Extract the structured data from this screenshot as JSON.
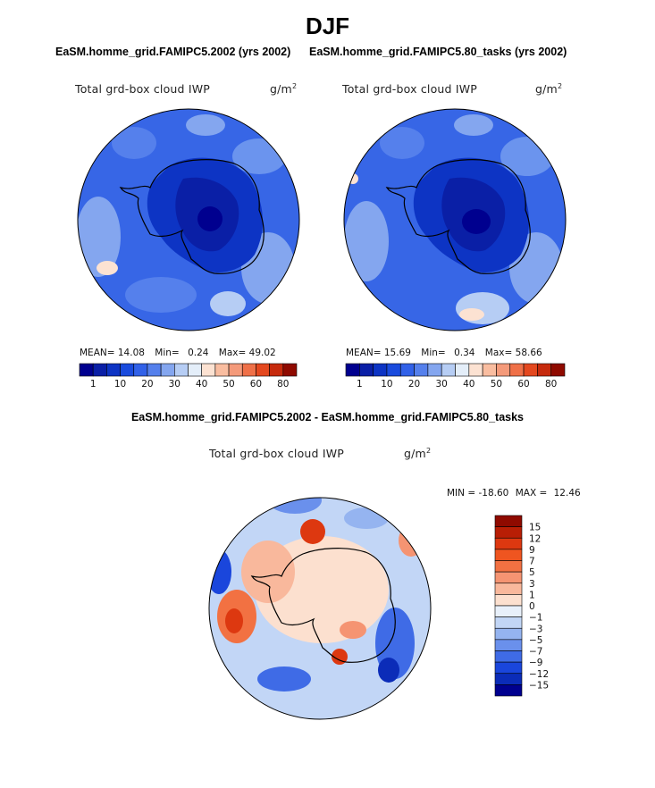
{
  "page_title": "DJF",
  "chart_data": [
    {
      "type": "heatmap",
      "projection": "south-polar-stereographic",
      "title": "EaSM.homme_grid.FAMIPC5.2002 (yrs 2002)",
      "variable_label": "Total grd-box cloud IWP",
      "units_base": "g/m",
      "units_exp": "2",
      "stats": {
        "mean_label": "MEAN=",
        "mean": "14.08",
        "min_label": "Min=",
        "min": "0.24",
        "max_label": "Max=",
        "max": "49.02"
      },
      "colorbar": {
        "levels": [
          1,
          5,
          10,
          15,
          20,
          25,
          30,
          35,
          40,
          45,
          50,
          55,
          60,
          70,
          80
        ],
        "tick_labels": [
          "1",
          "10",
          "20",
          "30",
          "40",
          "50",
          "60",
          "80"
        ],
        "colors": [
          "#00008f",
          "#0a1fa6",
          "#0d34c4",
          "#1a4bdd",
          "#3161e8",
          "#5580ec",
          "#84a6ef",
          "#b6cdf4",
          "#e4eef9",
          "#fce2d2",
          "#f9bda0",
          "#f49a7a",
          "#ef7048",
          "#e4481f",
          "#c62a0d",
          "#8f0a00"
        ]
      }
    },
    {
      "type": "heatmap",
      "projection": "south-polar-stereographic",
      "title": "EaSM.homme_grid.FAMIPC5.80_tasks (yrs 2002)",
      "variable_label": "Total grd-box cloud IWP",
      "units_base": "g/m",
      "units_exp": "2",
      "stats": {
        "mean_label": "MEAN=",
        "mean": "15.69",
        "min_label": "Min=",
        "min": "0.34",
        "max_label": "Max=",
        "max": "58.66"
      },
      "colorbar": {
        "levels": [
          1,
          5,
          10,
          15,
          20,
          25,
          30,
          35,
          40,
          45,
          50,
          55,
          60,
          70,
          80
        ],
        "tick_labels": [
          "1",
          "10",
          "20",
          "30",
          "40",
          "50",
          "60",
          "80"
        ],
        "colors": [
          "#00008f",
          "#0a1fa6",
          "#0d34c4",
          "#1a4bdd",
          "#3161e8",
          "#5580ec",
          "#84a6ef",
          "#b6cdf4",
          "#e4eef9",
          "#fce2d2",
          "#f9bda0",
          "#f49a7a",
          "#ef7048",
          "#e4481f",
          "#c62a0d",
          "#8f0a00"
        ]
      }
    },
    {
      "type": "heatmap",
      "projection": "south-polar-stereographic",
      "title": "EaSM.homme_grid.FAMIPC5.2002 - EaSM.homme_grid.FAMIPC5.80_tasks",
      "variable_label": "Total grd-box cloud IWP",
      "units_base": "g/m",
      "units_exp": "2",
      "stats": {
        "min_label": "MIN =",
        "min": "-18.60",
        "max_label": "MAX =",
        "max": "12.46"
      },
      "colorbar": {
        "orientation": "vertical",
        "tick_labels": [
          "15",
          "12",
          "9",
          "7",
          "5",
          "3",
          "1",
          "0",
          "−1",
          "−3",
          "−5",
          "−7",
          "−9",
          "−12",
          "−15"
        ],
        "colors": [
          "#8f0a00",
          "#b81e05",
          "#dd3810",
          "#ef5520",
          "#f27142",
          "#f59472",
          "#f9b89c",
          "#fce0cf",
          "#e8f0fa",
          "#c2d6f6",
          "#95b4f0",
          "#6a90ec",
          "#3f6be6",
          "#1a46dc",
          "#0b2cb8",
          "#00008f"
        ]
      }
    }
  ]
}
